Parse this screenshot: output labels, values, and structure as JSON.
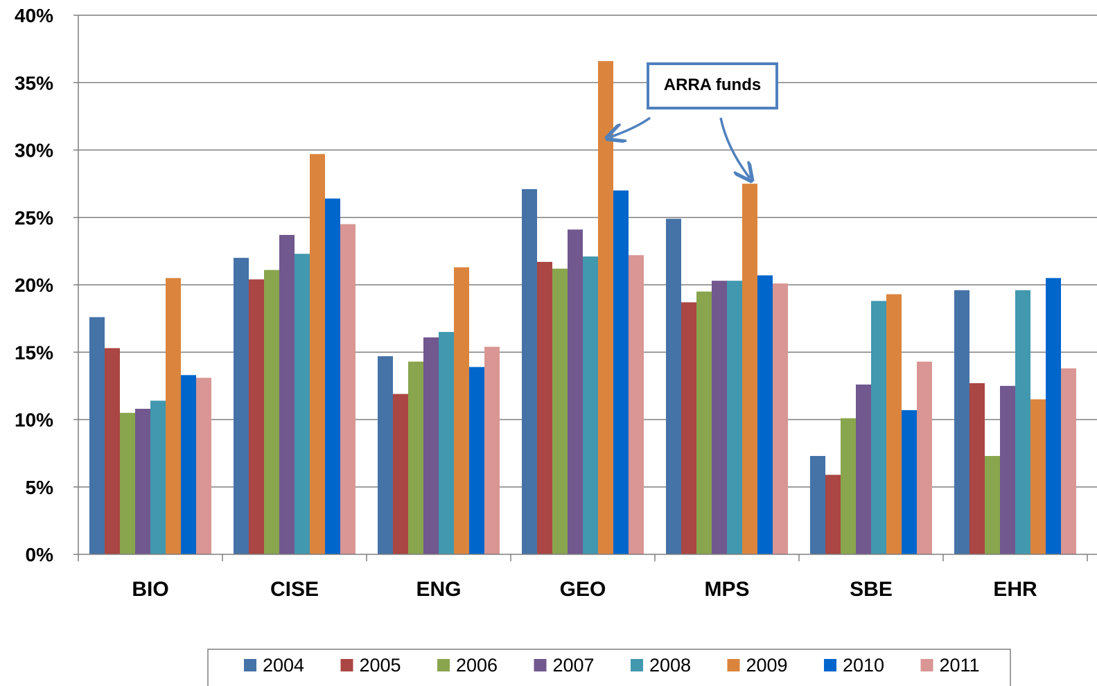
{
  "chart_data": {
    "type": "bar",
    "categories": [
      "BIO",
      "CISE",
      "ENG",
      "GEO",
      "MPS",
      "SBE",
      "EHR"
    ],
    "y_tick_labels": [
      "0%",
      "5%",
      "10%",
      "15%",
      "20%",
      "25%",
      "30%",
      "35%",
      "40%"
    ],
    "ylim": [
      0,
      40
    ],
    "y_unit": "%",
    "grid": true,
    "legend_position": "bottom",
    "series": [
      {
        "name": "2004",
        "color": "#4572A7",
        "values": [
          17.6,
          22.0,
          14.7,
          27.1,
          24.9,
          7.3,
          19.6
        ]
      },
      {
        "name": "2005",
        "color": "#AA4643",
        "values": [
          15.3,
          20.4,
          11.9,
          21.7,
          18.7,
          5.9,
          12.7
        ]
      },
      {
        "name": "2006",
        "color": "#89A54E",
        "values": [
          10.5,
          21.1,
          14.3,
          21.2,
          19.5,
          10.1,
          7.3
        ]
      },
      {
        "name": "2007",
        "color": "#71588F",
        "values": [
          10.8,
          23.7,
          16.1,
          24.1,
          20.3,
          12.6,
          12.5
        ]
      },
      {
        "name": "2008",
        "color": "#4198AF",
        "values": [
          11.4,
          22.3,
          16.5,
          22.1,
          20.3,
          18.8,
          19.6
        ]
      },
      {
        "name": "2009",
        "color": "#DB843D",
        "values": [
          20.5,
          29.7,
          21.3,
          36.6,
          27.5,
          19.3,
          11.5
        ]
      },
      {
        "name": "2010",
        "color": "#0066CC",
        "values": [
          13.3,
          26.4,
          13.9,
          27.0,
          20.7,
          10.7,
          20.5
        ]
      },
      {
        "name": "2011",
        "color": "#D99694",
        "values": [
          13.1,
          24.5,
          15.4,
          22.2,
          20.1,
          14.3,
          13.8
        ]
      }
    ],
    "annotations": [
      {
        "text": "ARRA funds",
        "points_to": [
          {
            "category": "GEO",
            "series": "2009"
          },
          {
            "category": "MPS",
            "series": "2009"
          }
        ]
      }
    ]
  }
}
